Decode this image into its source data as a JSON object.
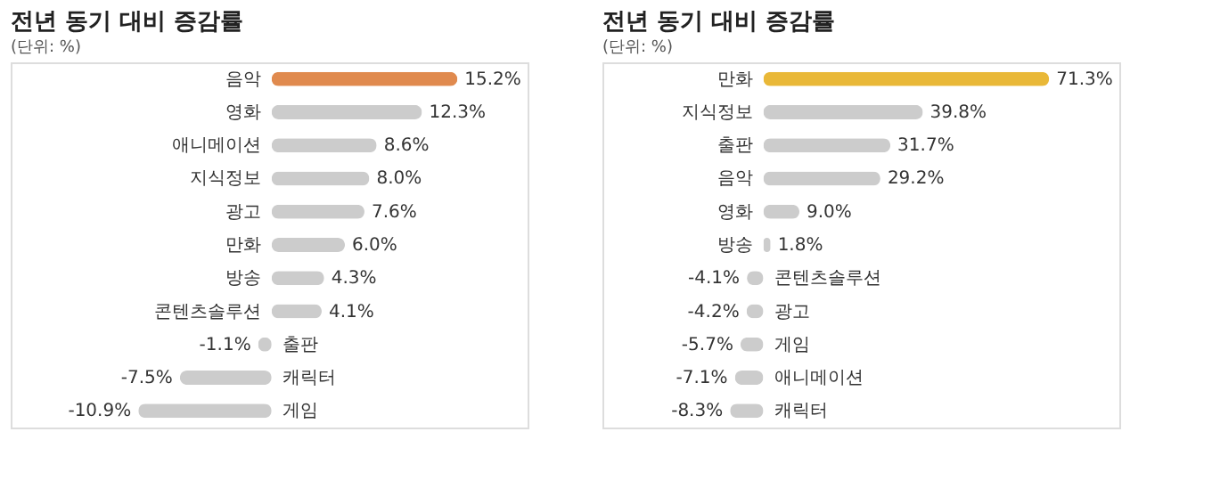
{
  "chart_data": [
    {
      "type": "bar",
      "orientation": "horizontal",
      "title": "전년 동기 대비 증감률",
      "subtitle": "(단위: %)",
      "categories": [
        "음악",
        "영화",
        "애니메이션",
        "지식정보",
        "광고",
        "만화",
        "방송",
        "콘텐츠솔루션",
        "출판",
        "캐릭터",
        "게임"
      ],
      "values": [
        15.2,
        12.3,
        8.6,
        8.0,
        7.6,
        6.0,
        4.3,
        4.1,
        -1.1,
        -7.5,
        -10.9
      ],
      "colors": [
        "#e08a4e",
        "#cccccc",
        "#cccccc",
        "#cccccc",
        "#cccccc",
        "#cccccc",
        "#cccccc",
        "#cccccc",
        "#cccccc",
        "#cccccc",
        "#cccccc"
      ],
      "value_labels": [
        "15.2%",
        "12.3%",
        "8.6%",
        "8.0%",
        "7.6%",
        "6.0%",
        "4.3%",
        "4.1%",
        "-1.1%",
        "-7.5%",
        "-10.9%"
      ]
    },
    {
      "type": "bar",
      "orientation": "horizontal",
      "title": "전년 동기 대비 증감률",
      "subtitle": "(단위: %)",
      "categories": [
        "만화",
        "지식정보",
        "출판",
        "음악",
        "영화",
        "방송",
        "콘텐츠솔루션",
        "광고",
        "게임",
        "애니메이션",
        "캐릭터"
      ],
      "values": [
        71.3,
        39.8,
        31.7,
        29.2,
        9.0,
        1.8,
        -4.1,
        -4.2,
        -5.7,
        -7.1,
        -8.3
      ],
      "colors": [
        "#e9b838",
        "#cccccc",
        "#cccccc",
        "#cccccc",
        "#cccccc",
        "#cccccc",
        "#cccccc",
        "#cccccc",
        "#cccccc",
        "#cccccc",
        "#cccccc"
      ],
      "value_labels": [
        "71.3%",
        "39.8%",
        "31.7%",
        "29.2%",
        "9.0%",
        "1.8%",
        "-4.1%",
        "-4.2%",
        "-5.7%",
        "-7.1%",
        "-8.3%"
      ]
    }
  ]
}
